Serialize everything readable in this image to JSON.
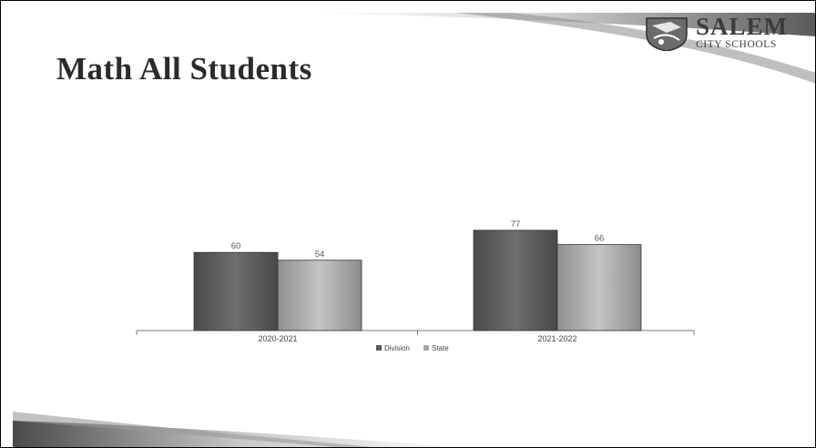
{
  "slide": {
    "title": "Math All Students",
    "logo": {
      "name": "SALEM",
      "subtitle": "CITY SCHOOLS"
    }
  },
  "chart_data": {
    "type": "bar",
    "categories": [
      "2020-2021",
      "2021-2022"
    ],
    "series": [
      {
        "name": "Division",
        "values": [
          60,
          77
        ],
        "color": "#5b5b5b"
      },
      {
        "name": "State",
        "values": [
          54,
          66
        ],
        "color": "#a8a8a8"
      }
    ],
    "title": "",
    "xlabel": "",
    "ylabel": "",
    "ylim": [
      0,
      100
    ],
    "grid": false,
    "data_labels": true,
    "legend_position": "bottom"
  }
}
